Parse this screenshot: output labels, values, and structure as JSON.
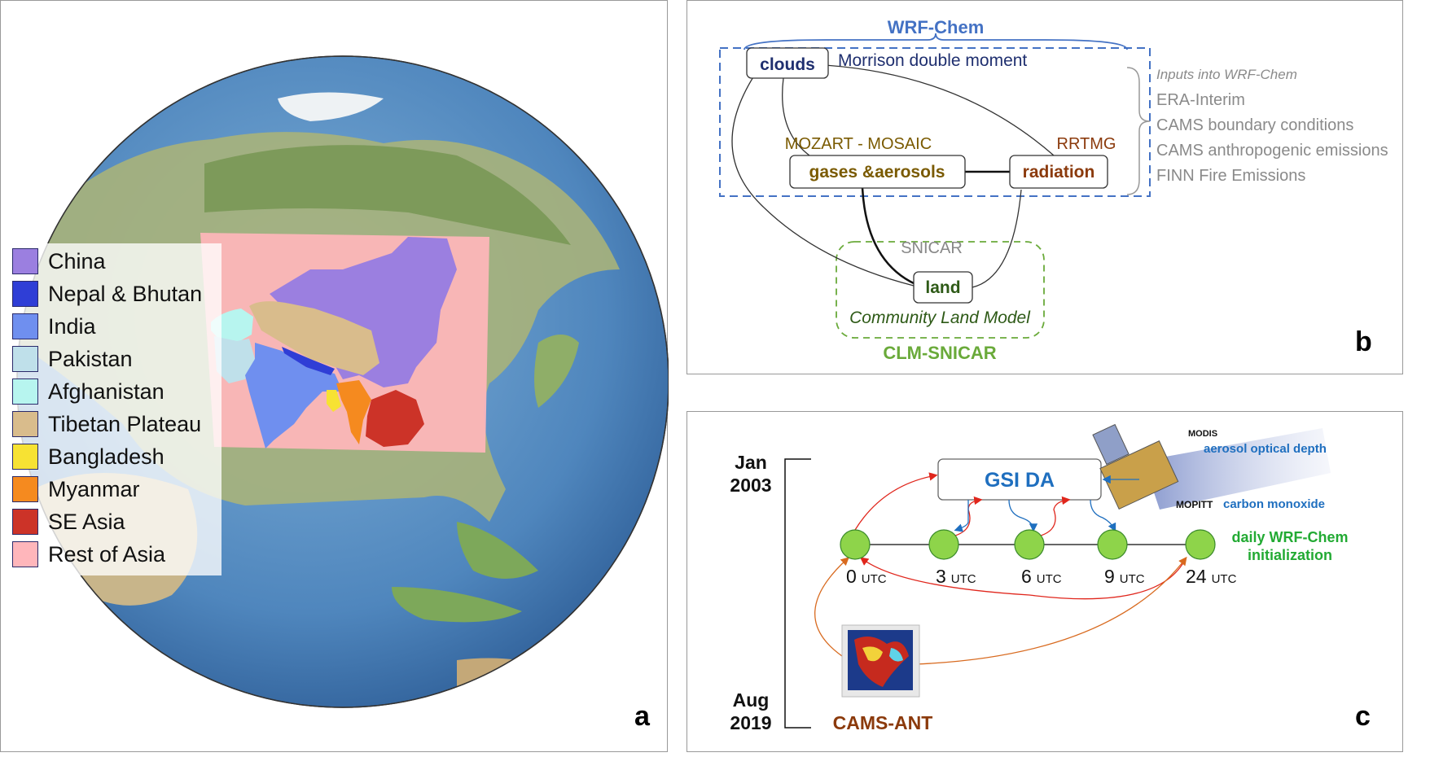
{
  "panel_a": {
    "letter": "a",
    "legend": [
      {
        "label": "China",
        "color": "#9b7fe0"
      },
      {
        "label": "Nepal & Bhutan",
        "color": "#2f3ed6"
      },
      {
        "label": "India",
        "color": "#6f8fef"
      },
      {
        "label": "Pakistan",
        "color": "#bfe0ea"
      },
      {
        "label": "Afghanistan",
        "color": "#b7f5ef"
      },
      {
        "label": "Tibetan Plateau",
        "color": "#d9bc8c"
      },
      {
        "label": "Bangladesh",
        "color": "#f7e233"
      },
      {
        "label": "Myanmar",
        "color": "#f58a1f"
      },
      {
        "label": "SE Asia",
        "color": "#cc3328"
      },
      {
        "label": "Rest of Asia",
        "color": "#ffb6bb"
      }
    ]
  },
  "panel_b": {
    "letter": "b",
    "wrf_title": "WRF-Chem",
    "clouds": "clouds",
    "clouds_scheme": "Morrison double moment",
    "gases": "gases &aerosols",
    "gases_scheme": "MOZART - MOSAIC",
    "radiation": "radiation",
    "radiation_scheme": "RRTMG",
    "land": "land",
    "snicar": "SNICAR",
    "clm_full_parts": [
      "C",
      "ommunity ",
      "L",
      "and ",
      "M",
      "odel"
    ],
    "clm_title": "CLM-SNICAR",
    "inputs_title": "Inputs into WRF-Chem",
    "inputs": [
      "ERA-Interim",
      "CAMS boundary conditions",
      "CAMS anthropogenic emissions",
      "FINN Fire Emissions"
    ],
    "colors": {
      "wrf": "#4472c4",
      "clm": "#6aaa3a",
      "clouds": "#1f2f6f",
      "mozart": "#7a5a00",
      "rrtmg": "#8b3a0c",
      "land": "#2e5a17",
      "inputs": "#8a8a8a"
    }
  },
  "panel_c": {
    "letter": "c",
    "start_month": "Jan",
    "start_year": "2003",
    "end_month": "Aug",
    "end_year": "2019",
    "gsi": "GSI DA",
    "modis": "MODIS",
    "aod": "aerosol optical depth",
    "mopitt": "MOPITT",
    "co": "carbon monoxide",
    "daily_line1": "daily WRF-Chem",
    "daily_line2": "initialization",
    "cams_ant": "CAMS-ANT",
    "utc": "UTC",
    "hours": [
      "0",
      "3",
      "6",
      "9",
      "24"
    ],
    "colors": {
      "gsi": "#1f6fbf",
      "daily": "#22aa33",
      "cams": "#8b3a0c",
      "node": "#8ed44a"
    }
  }
}
